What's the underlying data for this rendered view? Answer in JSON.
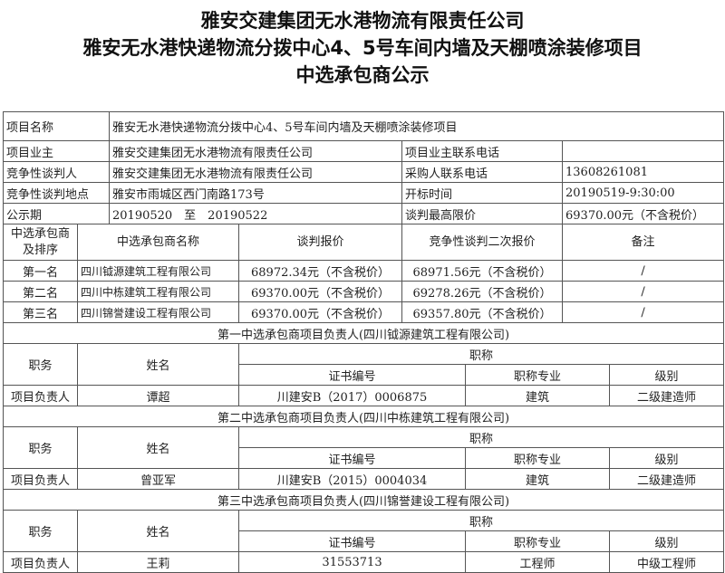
{
  "title": [
    "雅安交建集团无水港物流有限责任公司",
    "雅安无水港快递物流分拨中心4、5号车间内墙及天棚喷涂装修项目",
    "中选承包商公示"
  ],
  "info": {
    "project_name_label": "项目名称",
    "project_name": "雅安无水港快递物流分拨中心4、5号车间内墙及天棚喷涂装修项目",
    "owner_label": "项目业主",
    "owner": "雅安交建集团无水港物流有限责任公司",
    "owner_phone_label": "项目业主联系电话",
    "owner_phone": "",
    "negotiator_label": "竞争性谈判人",
    "negotiator": "雅安交建集团无水港物流有限责任公司",
    "buyer_phone_label": "采购人联系电话",
    "buyer_phone": "13608261081",
    "location_label": "竞争性谈判地点",
    "location": "雅安市雨城区西门南路173号",
    "open_time_label": "开标时间",
    "open_time": "20190519-9:30:00",
    "period_label": "公示期",
    "period": "20190520　至　20190522",
    "max_price_label": "谈判最高限价",
    "max_price": "69370.00元（不含税价）"
  },
  "bidders": {
    "headers": [
      "中选承包商及排序",
      "中选承包商名称",
      "谈判报价",
      "竞争性谈判二次报价",
      "备注"
    ],
    "rows": [
      {
        "rank": "第一名",
        "name": "四川钺源建筑工程有限公司",
        "price": "68972.34元（不含税价）",
        "second": "68971.56元（不含税价）",
        "note": "/"
      },
      {
        "rank": "第二名",
        "name": "四川中栋建筑工程有限公司",
        "price": "69370.00元（不含税价）",
        "second": "69278.26元（不含税价）",
        "note": "/"
      },
      {
        "rank": "第三名",
        "name": "四川锦誉建设工程有限公司",
        "price": "69370.00元（不含税价）",
        "second": "69357.80元（不含税价）",
        "note": "/"
      }
    ]
  },
  "persons": {
    "role_h": "职务",
    "name_h": "姓名",
    "title_h": "职称",
    "cert_h": "证书编号",
    "major_h": "职称专业",
    "level_h": "级别",
    "sections": [
      {
        "heading": "第一中选承包商项目负责人(四川钺源建筑工程有限公司)",
        "role": "项目负责人",
        "name": "谭超",
        "cert": "川建安B（2017）0006875",
        "major": "建筑",
        "level": "二级建造师"
      },
      {
        "heading": "第二中选承包商项目负责人(四川中栋建筑工程有限公司)",
        "role": "项目负责人",
        "name": "曾亚军",
        "cert": "川建安B（2015）0004034",
        "major": "建筑",
        "level": "二级建造师"
      },
      {
        "heading": "第三中选承包商项目负责人(四川锦誉建设工程有限公司)",
        "role": "项目负责人",
        "name": "王莉",
        "cert": "31553713",
        "major": "工程师",
        "level": "中级工程师"
      }
    ]
  }
}
